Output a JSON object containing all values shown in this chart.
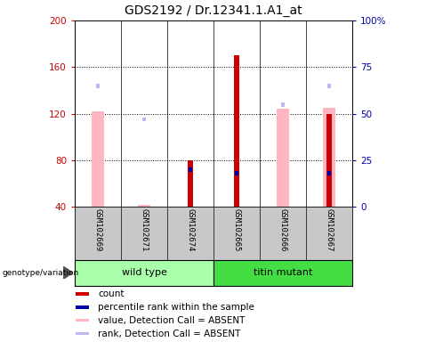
{
  "title": "GDS2192 / Dr.12341.1.A1_at",
  "samples": [
    "GSM102669",
    "GSM102671",
    "GSM102674",
    "GSM102665",
    "GSM102666",
    "GSM102667"
  ],
  "ylim_left": [
    40,
    200
  ],
  "ylim_right": [
    0,
    100
  ],
  "yticks_left": [
    40,
    80,
    120,
    160,
    200
  ],
  "yticks_right": [
    0,
    25,
    50,
    75,
    100
  ],
  "yticklabels_right": [
    "0",
    "25",
    "50",
    "75",
    "100%"
  ],
  "count_values": [
    0,
    0,
    80,
    170,
    0,
    120
  ],
  "percentile_rank": [
    0,
    0,
    20,
    18,
    0,
    18
  ],
  "pink_values": [
    122,
    42,
    82,
    0,
    124,
    125
  ],
  "rank_absent": [
    65,
    47,
    0,
    0,
    55,
    65
  ],
  "absent_flags": [
    true,
    true,
    false,
    false,
    true,
    true
  ],
  "colors": {
    "count": "#CC0000",
    "percentile": "#0000AA",
    "pink": "#FFB6C1",
    "rank_absent": "#BBBBEE",
    "bg_sample": "#C8C8C8",
    "left_axis": "#CC0000",
    "right_axis": "#0000AA",
    "wt_green": "#AAFFAA",
    "tm_green": "#44DD44"
  },
  "legend_items": [
    {
      "label": "count",
      "color": "#CC0000"
    },
    {
      "label": "percentile rank within the sample",
      "color": "#0000AA"
    },
    {
      "label": "value, Detection Call = ABSENT",
      "color": "#FFB6C1"
    },
    {
      "label": "rank, Detection Call = ABSENT",
      "color": "#BBBBEE"
    }
  ],
  "groups": [
    {
      "name": "wild type",
      "start": 0,
      "end": 3,
      "color": "#AAFFAA"
    },
    {
      "name": "titin mutant",
      "start": 3,
      "end": 6,
      "color": "#44DD44"
    }
  ]
}
